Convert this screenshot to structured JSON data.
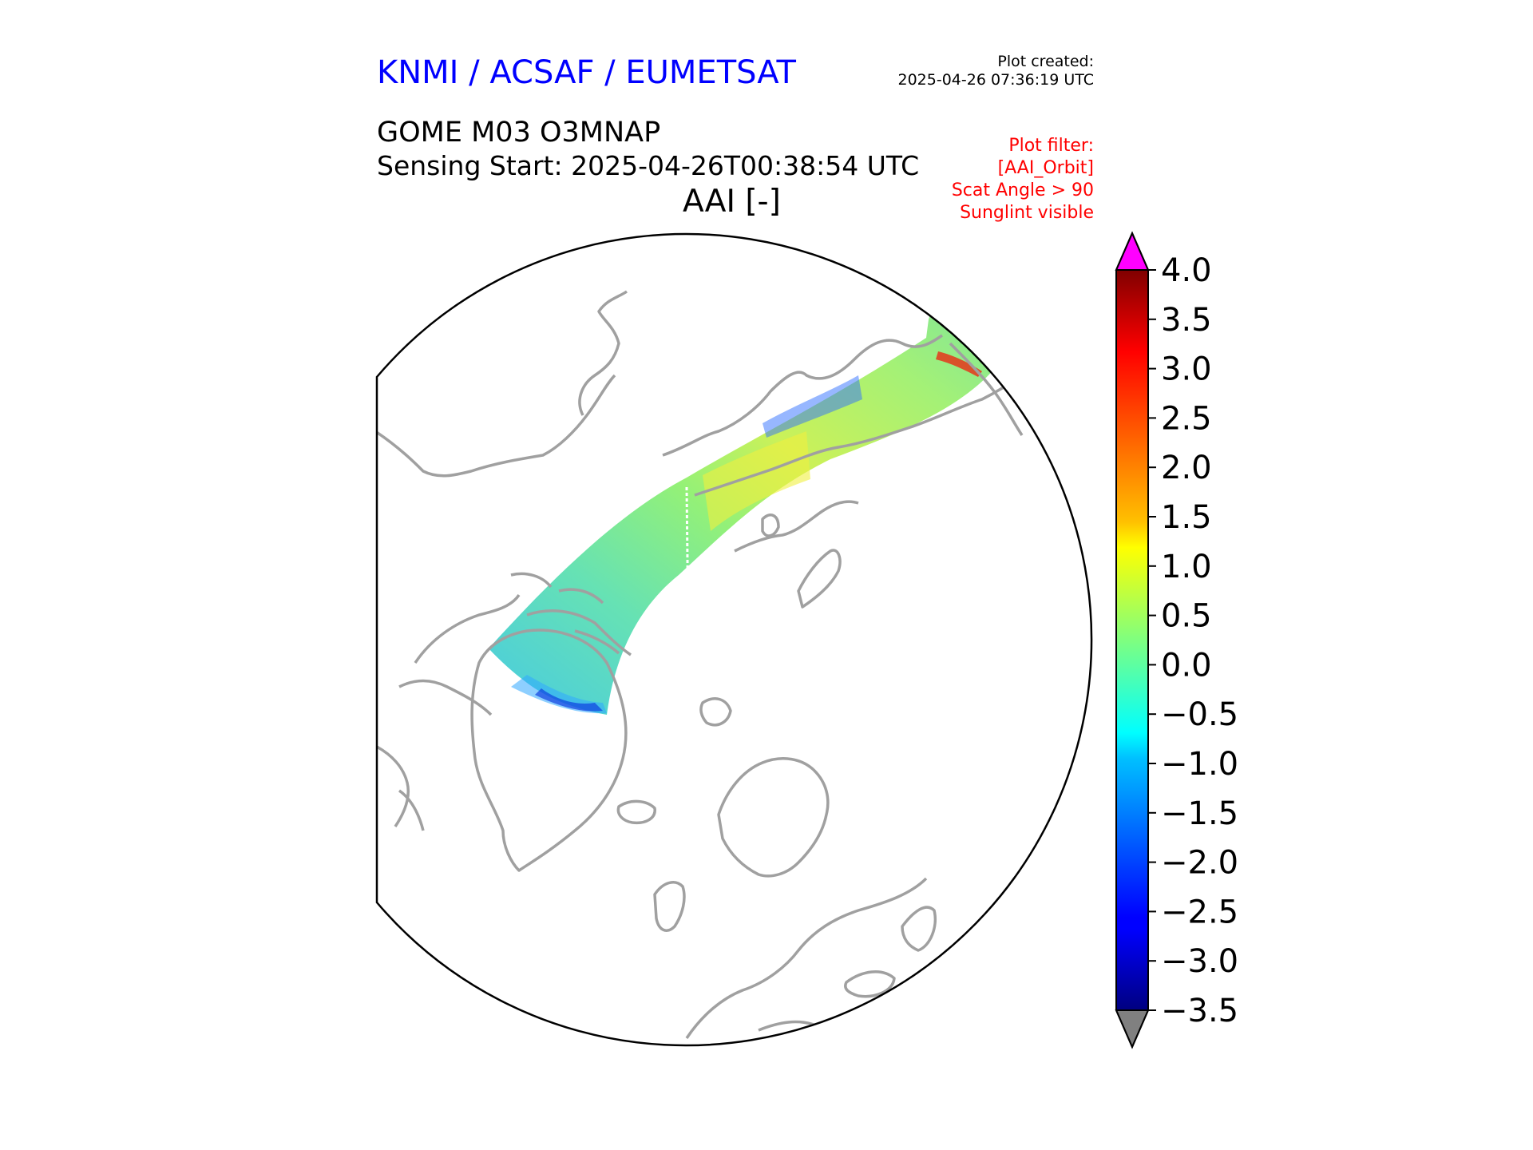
{
  "header": {
    "org_title": "KNMI / ACSAF / EUMETSAT",
    "created_label": "Plot created:",
    "created_time": "2025-04-26 07:36:19 UTC",
    "product": "GOME M03 O3MNAP",
    "sensing_start": "Sensing Start: 2025-04-26T00:38:54 UTC",
    "variable": "AAI [-]"
  },
  "filter": {
    "lines": [
      "Plot filter:",
      "[AAI_Orbit]",
      "Scat Angle > 90",
      "Sunglint visible"
    ]
  },
  "colorbar": {
    "min": -3.5,
    "max": 4.0,
    "ticks": [
      "4.0",
      "3.5",
      "3.0",
      "2.5",
      "2.0",
      "1.5",
      "1.0",
      "0.5",
      "0.0",
      "−0.5",
      "−1.0",
      "−1.5",
      "−2.0",
      "−2.5",
      "−3.0",
      "−3.5"
    ],
    "tick_values": [
      4.0,
      3.5,
      3.0,
      2.5,
      2.0,
      1.5,
      1.0,
      0.5,
      0.0,
      -0.5,
      -1.0,
      -1.5,
      -2.0,
      -2.5,
      -3.0,
      -3.5
    ],
    "over_color": "#ff00ff",
    "under_color": "#808080",
    "colormap": "jet"
  },
  "map": {
    "projection": "north-polar-stereographic",
    "coastline_color": "#a0a0a0",
    "swath_colors": [
      "#3ec8e0",
      "#5ee0a8",
      "#9cf068",
      "#e0f040",
      "#30a0ff"
    ]
  }
}
